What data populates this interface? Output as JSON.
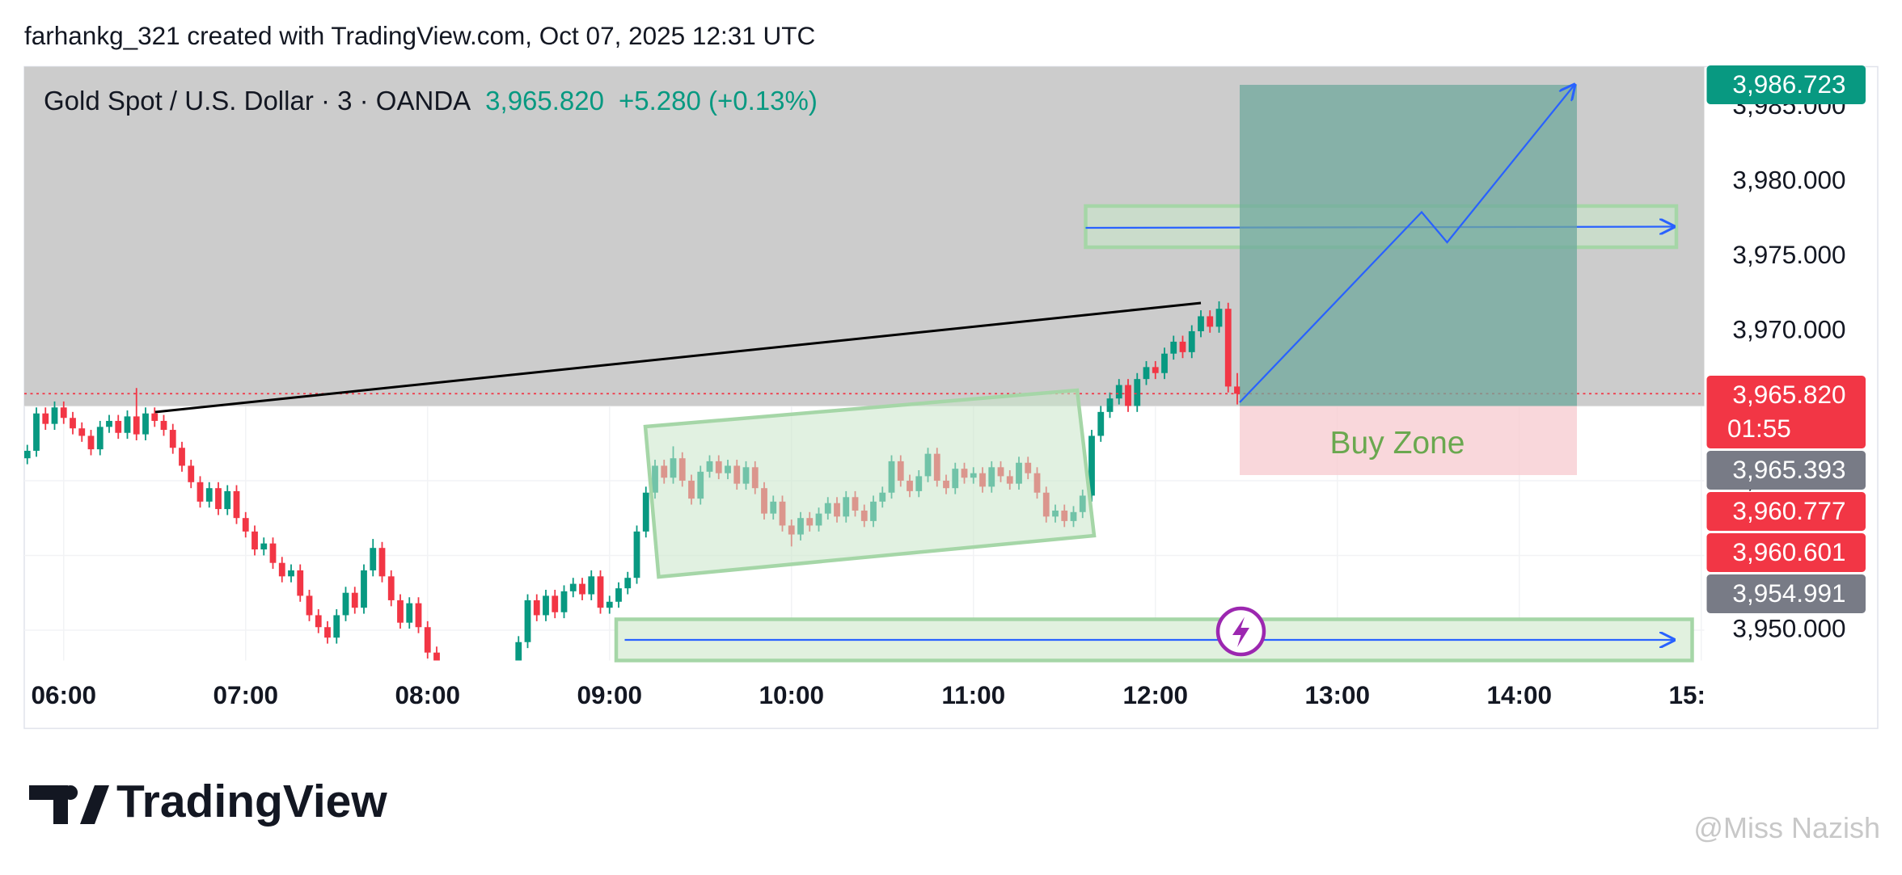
{
  "header": "farhankg_321 created with TradingView.com, Oct 07, 2025 12:31 UTC",
  "chart_data": {
    "type": "candlestick",
    "symbol": "Gold Spot / U.S. Dollar · 3 · OANDA",
    "last_price": "3,965.820",
    "change": "+5.280 (+0.13%)",
    "up_color": "#089981",
    "down_color": "#f23645",
    "xlim": [
      "05:47",
      "15:01"
    ],
    "xticks": [
      "06:00",
      "07:00",
      "08:00",
      "09:00",
      "10:00",
      "11:00",
      "12:00",
      "13:00",
      "14:00",
      "15:00"
    ],
    "ylim": [
      3947.97,
      3987.7
    ],
    "yticks": [
      {
        "value": 3950,
        "label": "3,950.000"
      },
      {
        "value": 3955,
        "label": "3,955.000"
      },
      {
        "value": 3960,
        "label": "3,960.000"
      },
      {
        "value": 3965,
        "label": "3,965.000"
      },
      {
        "value": 3970,
        "label": "3,970.000"
      },
      {
        "value": 3975,
        "label": "3,975.000"
      },
      {
        "value": 3980,
        "label": "3,980.000"
      },
      {
        "value": 3985,
        "label": "3,985.000"
      }
    ],
    "x": [
      "05:48",
      "05:51",
      "05:54",
      "05:57",
      "06:00",
      "06:03",
      "06:06",
      "06:09",
      "06:12",
      "06:15",
      "06:18",
      "06:21",
      "06:24",
      "06:27",
      "06:30",
      "06:33",
      "06:36",
      "06:39",
      "06:42",
      "06:45",
      "06:48",
      "06:51",
      "06:54",
      "06:57",
      "07:00",
      "07:03",
      "07:06",
      "07:09",
      "07:12",
      "07:15",
      "07:18",
      "07:21",
      "07:24",
      "07:27",
      "07:30",
      "07:33",
      "07:36",
      "07:39",
      "07:42",
      "07:45",
      "07:48",
      "07:51",
      "07:54",
      "07:57",
      "08:00",
      "08:03",
      "08:06",
      "08:09",
      "08:12",
      "08:15",
      "08:18",
      "08:21",
      "08:24",
      "08:27",
      "08:30",
      "08:33",
      "08:36",
      "08:39",
      "08:42",
      "08:45",
      "08:48",
      "08:51",
      "08:54",
      "08:57",
      "09:00",
      "09:03",
      "09:06",
      "09:09",
      "09:12",
      "09:15",
      "09:18",
      "09:21",
      "09:24",
      "09:27",
      "09:30",
      "09:33",
      "09:36",
      "09:39",
      "09:42",
      "09:45",
      "09:48",
      "09:51",
      "09:54",
      "09:57",
      "10:00",
      "10:03",
      "10:06",
      "10:09",
      "10:12",
      "10:15",
      "10:18",
      "10:21",
      "10:24",
      "10:27",
      "10:30",
      "10:33",
      "10:36",
      "10:39",
      "10:42",
      "10:45",
      "10:48",
      "10:51",
      "10:54",
      "10:57",
      "11:00",
      "11:03",
      "11:06",
      "11:09",
      "11:12",
      "11:15",
      "11:18",
      "11:21",
      "11:24",
      "11:27",
      "11:30",
      "11:33",
      "11:36",
      "11:39",
      "11:42",
      "11:45",
      "11:48",
      "11:51",
      "11:54",
      "11:57",
      "12:00",
      "12:03",
      "12:06",
      "12:09",
      "12:12",
      "12:15",
      "12:18",
      "12:21",
      "12:24",
      "12:27"
    ],
    "open": [
      3961.5,
      3962.0,
      3964.5,
      3963.8,
      3964.9,
      3964.2,
      3963.5,
      3963.0,
      3962.1,
      3963.6,
      3964.0,
      3963.2,
      3964.3,
      3963.1,
      3964.5,
      3964.0,
      3963.4,
      3962.2,
      3961.0,
      3959.9,
      3958.6,
      3959.5,
      3958.1,
      3959.3,
      3957.5,
      3956.6,
      3955.4,
      3955.8,
      3954.5,
      3953.6,
      3954.0,
      3952.3,
      3951.0,
      3950.2,
      3949.5,
      3951.0,
      3952.5,
      3951.5,
      3954.0,
      3955.5,
      3953.6,
      3952.0,
      3950.5,
      3951.8,
      3950.2,
      3948.5,
      3947.0,
      3946.2,
      3945.5,
      3945.0,
      3944.6,
      3945.4,
      3946.0,
      3946.8,
      3947.5,
      3949.2,
      3952.0,
      3951.0,
      3952.3,
      3951.2,
      3952.6,
      3953.1,
      3952.4,
      3953.6,
      3951.5,
      3951.9,
      3952.8,
      3953.5,
      3956.6,
      3959.2,
      3961.0,
      3960.2,
      3961.5,
      3960.0,
      3958.8,
      3960.6,
      3961.3,
      3960.5,
      3961.0,
      3959.8,
      3960.9,
      3959.5,
      3957.8,
      3958.6,
      3957.0,
      3956.4,
      3957.5,
      3957.0,
      3957.8,
      3958.5,
      3957.6,
      3958.9,
      3958.0,
      3957.3,
      3958.6,
      3959.2,
      3961.3,
      3960.0,
      3959.3,
      3960.3,
      3961.8,
      3960.0,
      3959.5,
      3960.8,
      3960.2,
      3960.5,
      3959.6,
      3960.9,
      3960.3,
      3959.8,
      3961.2,
      3960.5,
      3959.2,
      3957.6,
      3958.0,
      3957.3,
      3957.9,
      3959.0,
      3963.0,
      3964.6,
      3965.5,
      3966.4,
      3965.0,
      3966.8,
      3967.6,
      3967.2,
      3968.5,
      3969.3,
      3968.6,
      3970.0,
      3971.0,
      3970.3,
      3971.5,
      3966.3
    ],
    "high": [
      3962.4,
      3964.9,
      3964.9,
      3965.3,
      3965.3,
      3964.6,
      3963.9,
      3963.4,
      3964.0,
      3964.4,
      3964.4,
      3964.7,
      3966.2,
      3964.9,
      3964.9,
      3964.4,
      3963.8,
      3962.6,
      3961.4,
      3960.3,
      3959.9,
      3959.9,
      3959.7,
      3959.7,
      3957.9,
      3957.0,
      3956.2,
      3956.2,
      3954.9,
      3954.4,
      3954.4,
      3952.7,
      3951.4,
      3950.6,
      3951.4,
      3952.9,
      3952.9,
      3954.4,
      3956.1,
      3955.9,
      3954.0,
      3952.4,
      3952.2,
      3952.2,
      3950.6,
      3948.9,
      3947.4,
      3946.6,
      3945.9,
      3945.4,
      3945.8,
      3946.4,
      3947.2,
      3947.9,
      3949.6,
      3952.4,
      3952.4,
      3952.7,
      3952.7,
      3953.0,
      3953.5,
      3953.5,
      3954.0,
      3954.0,
      3952.3,
      3953.2,
      3953.9,
      3957.0,
      3959.6,
      3961.4,
      3961.4,
      3962.3,
      3961.9,
      3960.4,
      3961.0,
      3961.7,
      3961.7,
      3961.4,
      3961.4,
      3961.3,
      3961.3,
      3959.9,
      3959.0,
      3959.0,
      3957.4,
      3957.9,
      3957.9,
      3958.2,
      3958.9,
      3958.9,
      3959.3,
      3959.3,
      3958.4,
      3959.0,
      3959.6,
      3961.7,
      3961.7,
      3960.4,
      3960.7,
      3962.2,
      3962.2,
      3960.4,
      3961.2,
      3961.2,
      3960.9,
      3960.9,
      3961.3,
      3961.3,
      3960.7,
      3961.6,
      3961.6,
      3960.9,
      3959.6,
      3958.4,
      3958.4,
      3958.3,
      3959.4,
      3963.4,
      3965.0,
      3965.9,
      3966.8,
      3966.8,
      3967.2,
      3968.0,
      3968.0,
      3968.9,
      3969.7,
      3969.7,
      3970.4,
      3971.4,
      3971.4,
      3972.0,
      3971.9,
      3967.2
    ],
    "low": [
      3961.1,
      3961.6,
      3963.4,
      3963.4,
      3963.8,
      3963.1,
      3962.6,
      3961.7,
      3961.7,
      3963.2,
      3962.8,
      3962.8,
      3962.7,
      3962.7,
      3963.6,
      3963.0,
      3961.8,
      3960.6,
      3959.5,
      3958.2,
      3958.2,
      3957.7,
      3957.7,
      3957.1,
      3956.2,
      3955.0,
      3955.0,
      3954.1,
      3953.2,
      3953.2,
      3951.9,
      3950.6,
      3949.8,
      3949.1,
      3949.1,
      3950.6,
      3951.1,
      3951.1,
      3953.6,
      3953.2,
      3951.6,
      3950.1,
      3950.1,
      3949.8,
      3948.1,
      3946.6,
      3945.8,
      3945.1,
      3944.6,
      3944.2,
      3944.2,
      3945.0,
      3945.6,
      3946.4,
      3947.1,
      3948.8,
      3950.6,
      3950.6,
      3950.8,
      3950.8,
      3952.2,
      3952.0,
      3952.0,
      3951.1,
      3951.1,
      3951.5,
      3952.4,
      3953.1,
      3956.2,
      3958.8,
      3959.8,
      3959.8,
      3959.6,
      3958.4,
      3958.4,
      3960.2,
      3960.1,
      3960.1,
      3959.4,
      3959.4,
      3959.1,
      3957.4,
      3957.4,
      3956.6,
      3955.6,
      3956.0,
      3956.6,
      3956.6,
      3957.4,
      3957.2,
      3957.2,
      3957.6,
      3956.9,
      3956.9,
      3958.2,
      3958.8,
      3959.6,
      3958.9,
      3958.9,
      3959.9,
      3959.6,
      3959.1,
      3959.1,
      3959.8,
      3959.8,
      3959.2,
      3959.2,
      3959.9,
      3959.4,
      3959.4,
      3960.1,
      3958.8,
      3957.2,
      3957.2,
      3956.9,
      3956.9,
      3957.5,
      3958.6,
      3962.6,
      3964.2,
      3965.1,
      3964.6,
      3964.6,
      3966.4,
      3966.8,
      3966.8,
      3968.1,
      3968.2,
      3968.2,
      3969.6,
      3969.9,
      3969.9,
      3965.9,
      3965.1
    ],
    "close": [
      3962.0,
      3964.5,
      3963.8,
      3964.9,
      3964.2,
      3963.5,
      3963.0,
      3962.1,
      3963.6,
      3964.0,
      3963.2,
      3964.3,
      3963.1,
      3964.5,
      3964.0,
      3963.4,
      3962.2,
      3961.0,
      3959.9,
      3958.6,
      3959.5,
      3958.1,
      3959.3,
      3957.5,
      3956.6,
      3955.4,
      3955.8,
      3954.5,
      3953.6,
      3954.0,
      3952.3,
      3951.0,
      3950.2,
      3949.5,
      3951.0,
      3952.5,
      3951.5,
      3954.0,
      3955.5,
      3953.6,
      3952.0,
      3950.5,
      3951.8,
      3950.2,
      3948.5,
      3947.0,
      3946.2,
      3945.5,
      3945.0,
      3944.6,
      3945.4,
      3946.0,
      3946.8,
      3947.5,
      3949.2,
      3952.0,
      3951.0,
      3952.3,
      3951.2,
      3952.6,
      3953.1,
      3952.4,
      3953.6,
      3951.5,
      3951.9,
      3952.8,
      3953.5,
      3956.6,
      3959.2,
      3961.0,
      3960.2,
      3961.5,
      3960.0,
      3958.8,
      3960.6,
      3961.3,
      3960.5,
      3961.0,
      3959.8,
      3960.9,
      3959.5,
      3957.8,
      3958.6,
      3957.0,
      3956.4,
      3957.5,
      3957.0,
      3957.8,
      3958.5,
      3957.6,
      3958.9,
      3958.0,
      3957.3,
      3958.6,
      3959.2,
      3961.3,
      3960.0,
      3959.3,
      3960.3,
      3961.8,
      3960.0,
      3959.5,
      3960.8,
      3960.2,
      3960.5,
      3959.6,
      3960.9,
      3960.3,
      3959.8,
      3961.2,
      3960.5,
      3959.2,
      3957.6,
      3958.0,
      3957.3,
      3957.9,
      3959.0,
      3963.0,
      3964.6,
      3965.5,
      3966.4,
      3965.0,
      3966.8,
      3967.6,
      3967.2,
      3968.5,
      3969.3,
      3968.6,
      3970.0,
      3971.0,
      3970.3,
      3971.5,
      3966.3,
      3965.82
    ],
    "price_badges": [
      {
        "label": "3,986.723",
        "color": "#089981"
      },
      {
        "label": "3,965.820",
        "countdown": "01:55",
        "color": "#f23645"
      },
      {
        "label": "3,965.393",
        "color": "#787b86"
      },
      {
        "label": "3,960.777",
        "color": "#f23645"
      },
      {
        "label": "3,960.601",
        "color": "#f23645"
      },
      {
        "label": "3,954.991",
        "color": "#787b86"
      }
    ],
    "annotation": "Buy Zone"
  },
  "footer": {
    "brand": "TradingView",
    "watermark": "@Miss Nazish"
  }
}
